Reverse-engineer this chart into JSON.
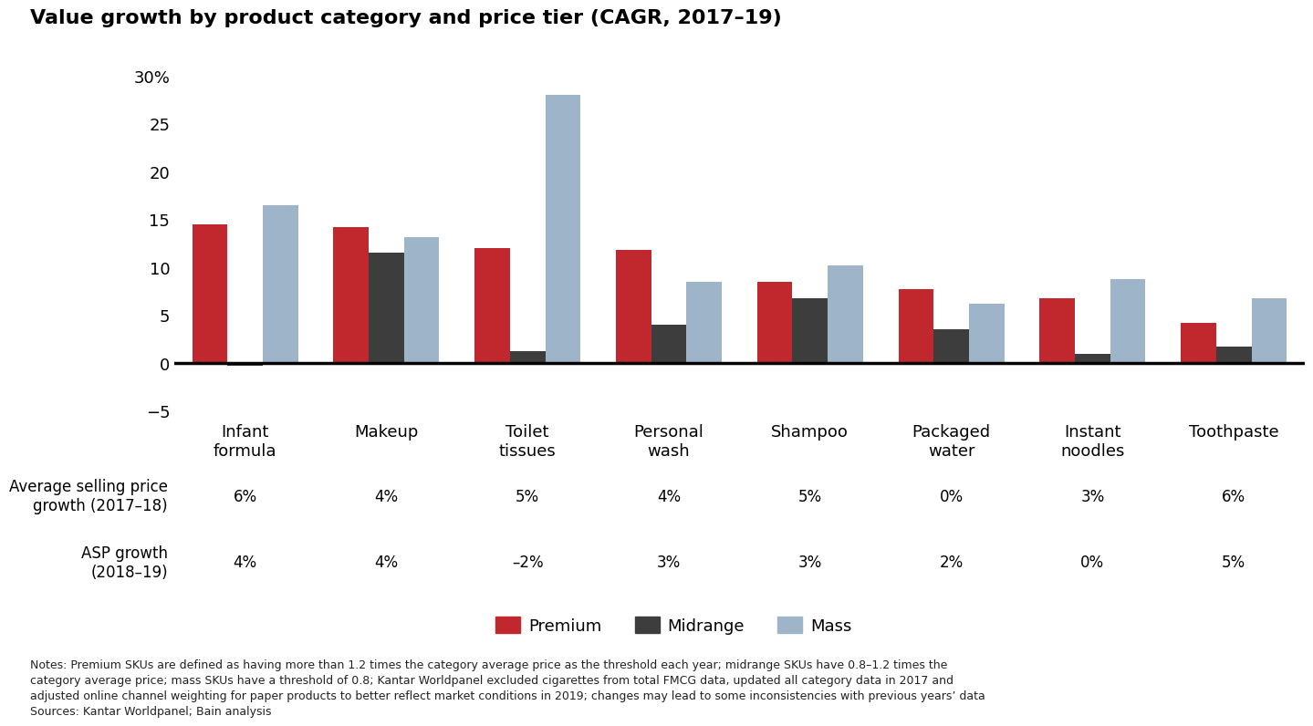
{
  "title": "Value growth by product category and price tier (CAGR, 2017–19)",
  "categories": [
    "Infant\nformula",
    "Makeup",
    "Toilet\ntissues",
    "Personal\nwash",
    "Shampoo",
    "Packaged\nwater",
    "Instant\nnoodles",
    "Toothpaste"
  ],
  "premium": [
    14.5,
    14.2,
    12.0,
    11.8,
    8.5,
    7.7,
    6.8,
    4.2
  ],
  "midrange": [
    -0.3,
    11.5,
    1.2,
    4.0,
    6.8,
    3.5,
    1.0,
    1.7
  ],
  "mass": [
    16.5,
    13.1,
    28.0,
    8.5,
    10.2,
    6.2,
    8.8,
    6.8
  ],
  "premium_color": "#c0282d",
  "midrange_color": "#3d3d3d",
  "mass_color": "#9db4c9",
  "ylim": [
    -5,
    32
  ],
  "yticks": [
    -5,
    0,
    5,
    10,
    15,
    20,
    25,
    30
  ],
  "ytick_labels": [
    "−5",
    "0",
    "5",
    "10",
    "15",
    "20",
    "25",
    "30%"
  ],
  "asp_label1": "Average selling price\ngrowth (2017–18)",
  "asp_label2": "ASP growth\n(2018–19)",
  "asp_values1": [
    "6%",
    "4%",
    "5%",
    "4%",
    "5%",
    "0%",
    "3%",
    "6%"
  ],
  "asp_values2": [
    "4%",
    "4%",
    "–2%",
    "3%",
    "3%",
    "2%",
    "0%",
    "5%"
  ],
  "notes_line1": "Notes: Premium SKUs are defined as having more than 1.2 times the category average price as the threshold each year; midrange SKUs have 0.8–1.2 times the",
  "notes_line2": "category average price; mass SKUs have a threshold of 0.8; Kantar Worldpanel excluded cigarettes from total FMCG data, updated all category data in 2017 and",
  "notes_line3": "adjusted online channel weighting for paper products to better reflect market conditions in 2019; changes may lead to some inconsistencies with previous years’ data",
  "notes_line4": "Sources: Kantar Worldpanel; Bain analysis",
  "bar_width": 0.25,
  "background_color": "#ffffff"
}
